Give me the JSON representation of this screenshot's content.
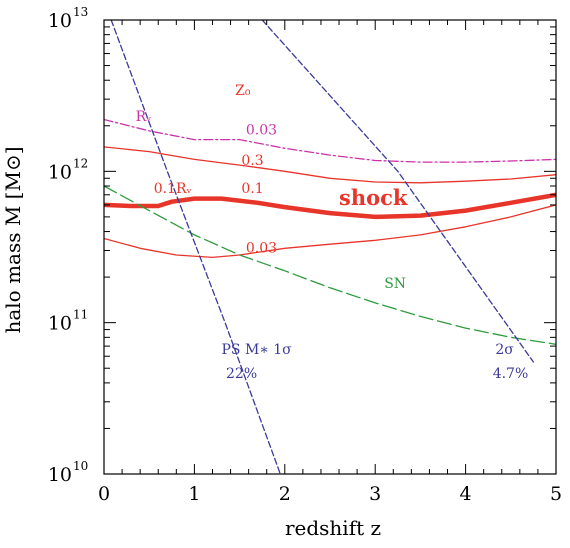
{
  "chart_data": {
    "type": "line",
    "xlabel": "redshift z",
    "ylabel": "halo mass M [M⊙]",
    "xlim": [
      0,
      5
    ],
    "ylim": [
      10000000000.0,
      10000000000000.0
    ],
    "yscale": "log",
    "grid": false,
    "x_ticks": [
      "0",
      "1",
      "2",
      "3",
      "4",
      "5"
    ],
    "y_ticks": [
      {
        "base": "10",
        "exp": "10"
      },
      {
        "base": "10",
        "exp": "11"
      },
      {
        "base": "10",
        "exp": "12"
      },
      {
        "base": "10",
        "exp": "13"
      }
    ],
    "series": [
      {
        "id": "rv-003",
        "color": "#cc33aa",
        "dash": "dashdot",
        "weight": "thin",
        "points": [
          [
            0,
            2200000000000.0
          ],
          [
            0.5,
            1850000000000.0
          ],
          [
            1,
            1620000000000.0
          ],
          [
            1.5,
            1620000000000.0
          ],
          [
            2,
            1420000000000.0
          ],
          [
            2.5,
            1280000000000.0
          ],
          [
            3,
            1180000000000.0
          ],
          [
            3.5,
            1150000000000.0
          ],
          [
            4,
            1150000000000.0
          ],
          [
            4.5,
            1170000000000.0
          ],
          [
            5,
            1200000000000.0
          ]
        ]
      },
      {
        "id": "z0-03",
        "color": "#e8352a",
        "dash": "solid",
        "weight": "thin",
        "points": [
          [
            0,
            1450000000000.0
          ],
          [
            0.5,
            1350000000000.0
          ],
          [
            1,
            1200000000000.0
          ],
          [
            1.5,
            1100000000000.0
          ],
          [
            2,
            1000000000000.0
          ],
          [
            2.5,
            900000000000.0
          ],
          [
            3,
            850000000000.0
          ],
          [
            3.5,
            840000000000.0
          ],
          [
            4,
            860000000000.0
          ],
          [
            4.5,
            890000000000.0
          ],
          [
            5,
            950000000000.0
          ]
        ]
      },
      {
        "id": "shock",
        "color": "#e8352a",
        "dash": "solid",
        "weight": "thick",
        "points": [
          [
            0,
            600000000000.0
          ],
          [
            0.3,
            590000000000.0
          ],
          [
            0.6,
            590000000000.0
          ],
          [
            0.75,
            630000000000.0
          ],
          [
            1,
            660000000000.0
          ],
          [
            1.3,
            660000000000.0
          ],
          [
            1.7,
            620000000000.0
          ],
          [
            2,
            580000000000.0
          ],
          [
            2.5,
            530000000000.0
          ],
          [
            3,
            500000000000.0
          ],
          [
            3.5,
            510000000000.0
          ],
          [
            4,
            550000000000.0
          ],
          [
            4.5,
            620000000000.0
          ],
          [
            5,
            700000000000.0
          ]
        ]
      },
      {
        "id": "z0-003",
        "color": "#e8352a",
        "dash": "solid",
        "weight": "thin",
        "points": [
          [
            0,
            360000000000.0
          ],
          [
            0.4,
            310000000000.0
          ],
          [
            0.8,
            280000000000.0
          ],
          [
            1.2,
            270000000000.0
          ],
          [
            1.5,
            280000000000.0
          ],
          [
            2,
            310000000000.0
          ],
          [
            2.5,
            330000000000.0
          ],
          [
            3,
            350000000000.0
          ],
          [
            3.5,
            380000000000.0
          ],
          [
            4,
            430000000000.0
          ],
          [
            4.5,
            500000000000.0
          ],
          [
            5,
            600000000000.0
          ]
        ]
      },
      {
        "id": "sn",
        "color": "#2e9a3e",
        "dash": "longdash",
        "weight": "thin",
        "points": [
          [
            0,
            800000000000.0
          ],
          [
            0.5,
            550000000000.0
          ],
          [
            1,
            380000000000.0
          ],
          [
            1.5,
            280000000000.0
          ],
          [
            2,
            220000000000.0
          ],
          [
            2.5,
            170000000000.0
          ],
          [
            3,
            135000000000.0
          ],
          [
            3.5,
            110000000000.0
          ],
          [
            4,
            92000000000.0
          ],
          [
            4.5,
            80000000000.0
          ],
          [
            5,
            72000000000.0
          ]
        ]
      },
      {
        "id": "ps-1sigma",
        "color": "#3a3a9a",
        "dash": "shortdash",
        "weight": "thin",
        "points": [
          [
            0.08,
            10000000000000.0
          ],
          [
            0.7,
            1000000000000.0
          ],
          [
            1.34,
            100000000000.0
          ],
          [
            1.95,
            10000000000.0
          ]
        ]
      },
      {
        "id": "ps-2sigma",
        "color": "#3a3a9a",
        "dash": "shortdash",
        "weight": "thin",
        "points": [
          [
            1.75,
            10000000000000.0
          ],
          [
            3.25,
            1000000000000.0
          ],
          [
            4.75,
            55000000000.0
          ]
        ]
      }
    ],
    "annotations": [
      {
        "id": "z0-header",
        "text": "Z₀",
        "color": "#e8352a",
        "x": 1.45,
        "y": 3200000000000.0
      },
      {
        "id": "rv",
        "text": "Rᵥ",
        "color": "#cc33aa",
        "x": 0.35,
        "y": 2150000000000.0
      },
      {
        "id": "rv-val",
        "text": "0.03",
        "color": "#cc33aa",
        "x": 1.57,
        "y": 1750000000000.0
      },
      {
        "id": "z0-03-val",
        "text": "0.3",
        "color": "#e8352a",
        "x": 1.52,
        "y": 1100000000000.0
      },
      {
        "id": "rv01",
        "text": "0.1Rᵥ",
        "color": "#e8352a",
        "x": 0.55,
        "y": 720000000000.0
      },
      {
        "id": "shock-val",
        "text": "0.1",
        "color": "#e8352a",
        "x": 1.52,
        "y": 720000000000.0
      },
      {
        "id": "shock",
        "text": "shock",
        "color": "#e8352a",
        "x": 2.6,
        "y": 600000000000.0,
        "big": true
      },
      {
        "id": "z0-003-val",
        "text": "0.03",
        "color": "#e8352a",
        "x": 1.57,
        "y": 290000000000.0
      },
      {
        "id": "sn",
        "text": "SN",
        "color": "#2e9a3e",
        "x": 3.1,
        "y": 170000000000.0
      },
      {
        "id": "ps",
        "text": "PS M∗  1σ",
        "color": "#3a3a9a",
        "x": 1.3,
        "y": 62000000000.0
      },
      {
        "id": "pct22",
        "text": "22%",
        "color": "#3a3a9a",
        "x": 1.35,
        "y": 43000000000.0
      },
      {
        "id": "two-sigma",
        "text": "2σ",
        "color": "#3a3a9a",
        "x": 4.33,
        "y": 62000000000.0
      },
      {
        "id": "pct47",
        "text": "4.7%",
        "color": "#3a3a9a",
        "x": 4.3,
        "y": 43000000000.0
      }
    ]
  }
}
